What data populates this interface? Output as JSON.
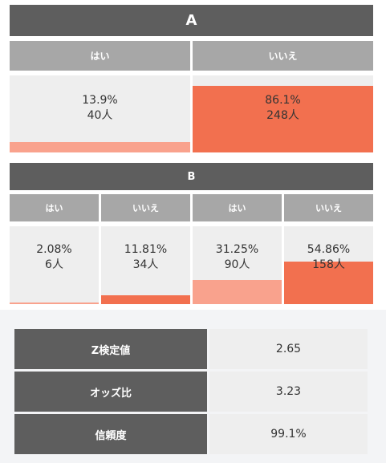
{
  "colors": {
    "yes": "#f9a28d",
    "no": "#f2704f"
  },
  "sectionA": {
    "title": "A",
    "cols": [
      {
        "label": "はい",
        "percent": "13.9%",
        "count": "40人",
        "fraction": 0.139,
        "color": "yes"
      },
      {
        "label": "いいえ",
        "percent": "86.1%",
        "count": "248人",
        "fraction": 0.861,
        "color": "no"
      }
    ]
  },
  "sectionB": {
    "title": "B",
    "cols": [
      {
        "label": "はい",
        "percent": "2.08%",
        "count": "6人",
        "fraction": 0.0208,
        "color": "yes"
      },
      {
        "label": "いいえ",
        "percent": "11.81%",
        "count": "34人",
        "fraction": 0.1181,
        "color": "no"
      },
      {
        "label": "はい",
        "percent": "31.25%",
        "count": "90人",
        "fraction": 0.3125,
        "color": "yes"
      },
      {
        "label": "いいえ",
        "percent": "54.86%",
        "count": "158人",
        "fraction": 0.5486,
        "color": "no"
      }
    ]
  },
  "stats": [
    {
      "label": "Z検定値",
      "value": "2.65"
    },
    {
      "label": "オッズ比",
      "value": "3.23"
    },
    {
      "label": "信頼度",
      "value": "99.1%"
    }
  ]
}
